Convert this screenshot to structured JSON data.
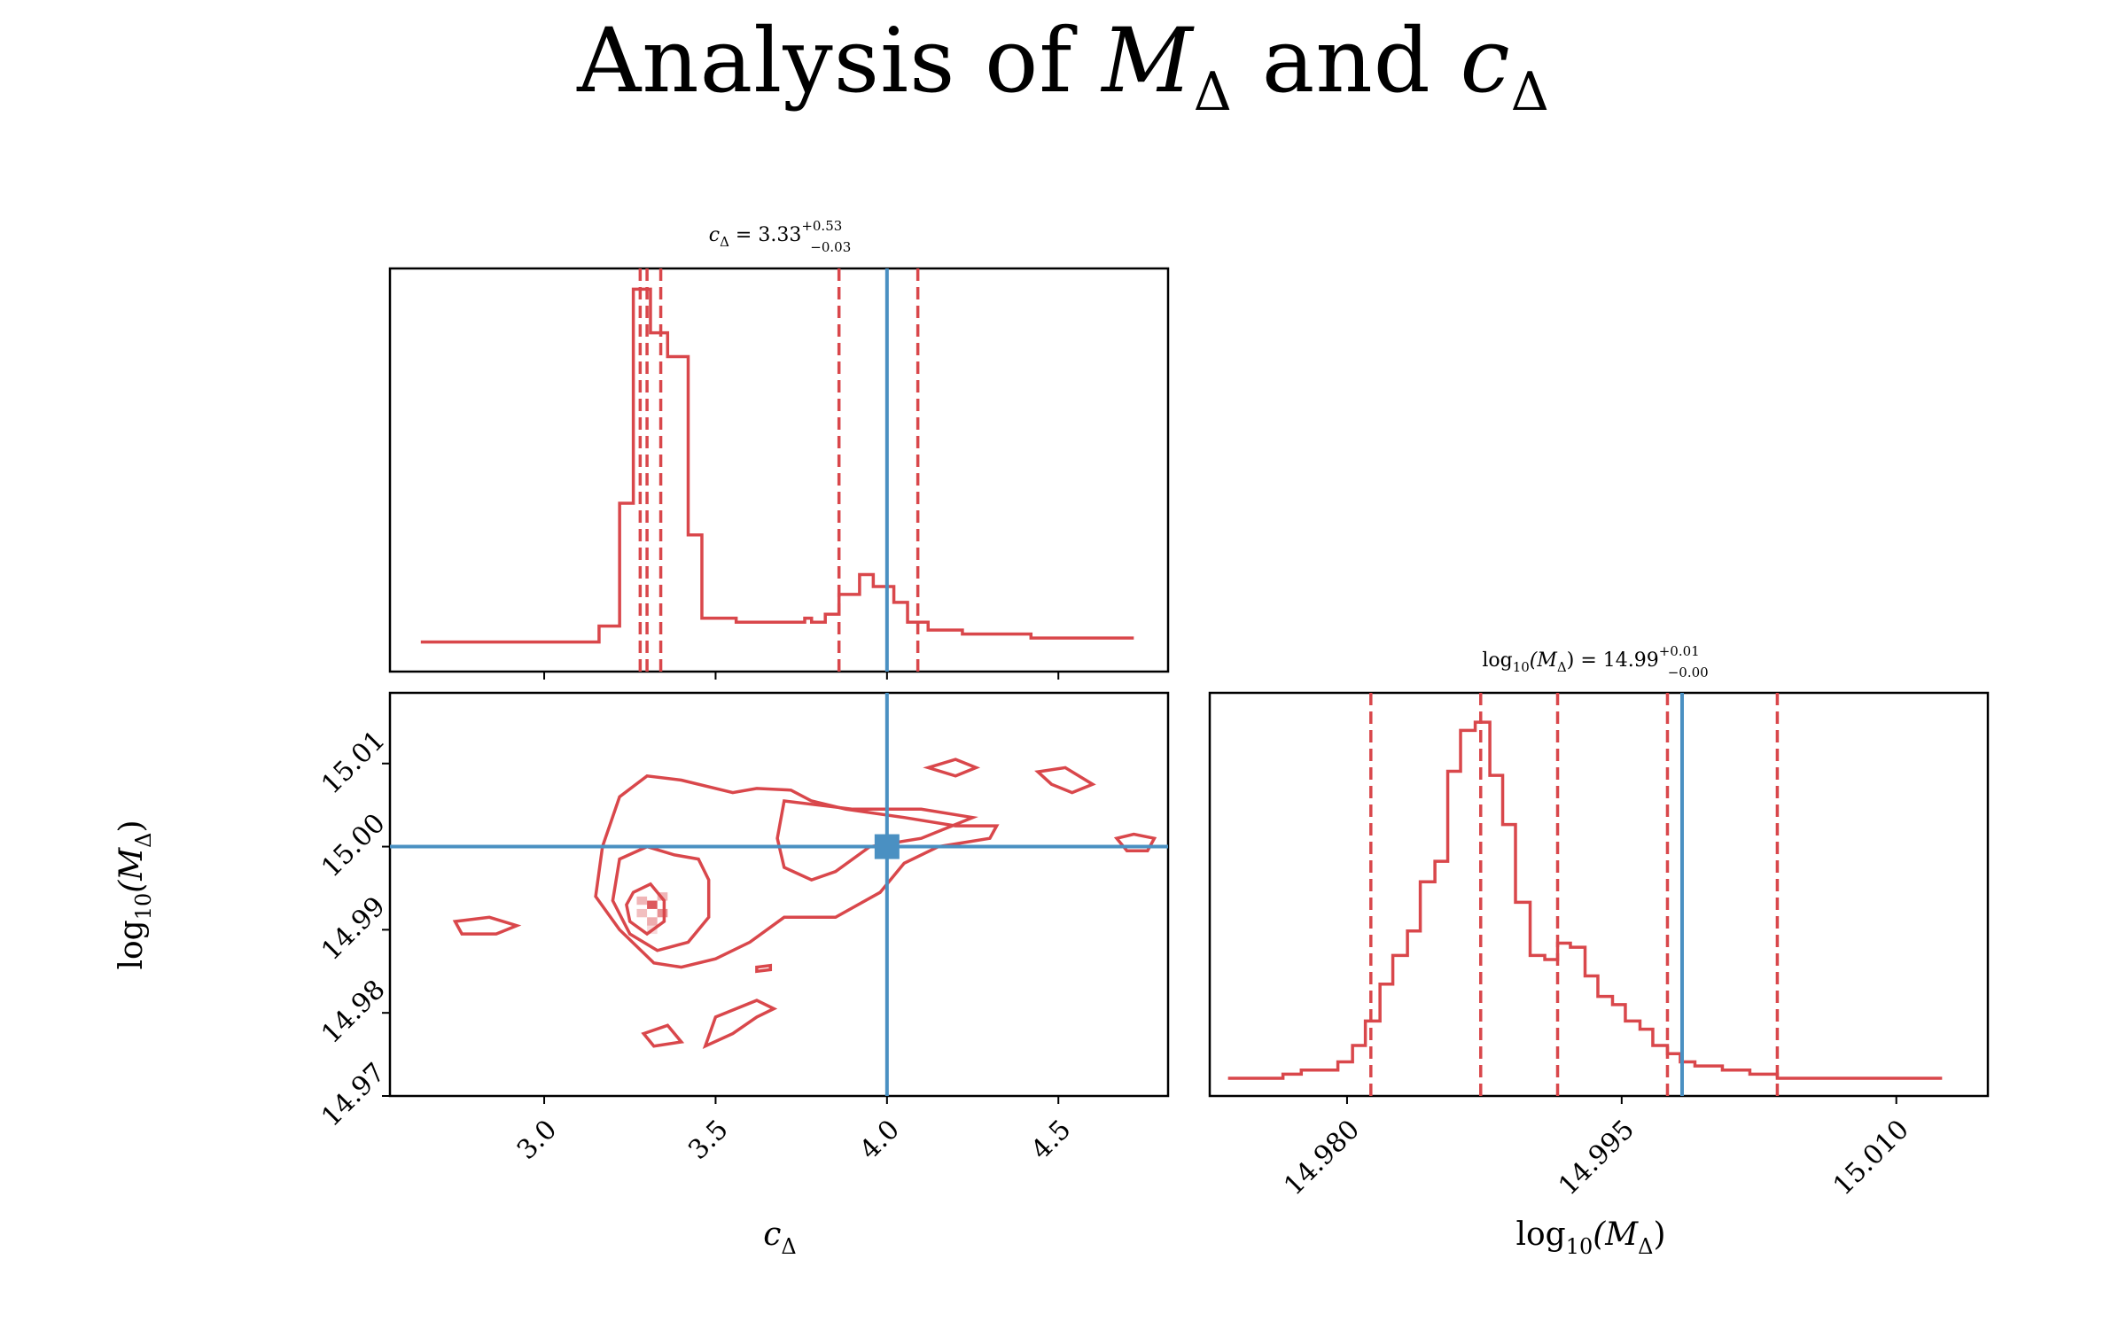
{
  "title": {
    "text": "Analysis of ",
    "sym1": "M",
    "sub1": "Δ",
    "mid": " and ",
    "sym2": "c",
    "sub2": "Δ"
  },
  "colors": {
    "posterior": "#d9474b",
    "truth": "#4a90c2",
    "axis": "#000000"
  },
  "panels": {
    "c_hist_title": {
      "lhs": "c",
      "sub": "Δ",
      "eq": " = 3.33",
      "plus": "+0.53",
      "minus": "−0.03"
    },
    "m_hist_title": {
      "lhs": "log",
      "lhs_sub": "10",
      "inner": "(M",
      "inner_sub": "Δ",
      "close": ")",
      "eq": " = 14.99",
      "plus": "+0.01",
      "minus": "−0.00"
    },
    "xlabel_c": {
      "sym": "c",
      "sub": "Δ"
    },
    "xlabel_m": {
      "text": "log",
      "sub": "10",
      "inner": "(M",
      "inner_sub": "Δ",
      "close": ")"
    },
    "ylabel_m": {
      "text": "log",
      "sub": "10",
      "inner": "(M",
      "inner_sub": "Δ",
      "close": ")"
    }
  },
  "chart_data": [
    {
      "type": "histogram",
      "panel": "c_delta_marginal",
      "x_ticks": [
        "3.0",
        "3.5",
        "4.0",
        "4.5"
      ],
      "x_tick_values": [
        3.0,
        3.5,
        4.0,
        4.5
      ],
      "xlim": [
        2.55,
        4.82
      ],
      "bin_edges": [
        2.64,
        2.7,
        2.76,
        2.82,
        2.88,
        2.94,
        3.0,
        3.06,
        3.12,
        3.16,
        3.22,
        3.26,
        3.31,
        3.36,
        3.42,
        3.46,
        3.56,
        3.62,
        3.66,
        3.72,
        3.76,
        3.78,
        3.82,
        3.86,
        3.92,
        3.96,
        4.02,
        4.06,
        4.12,
        4.22,
        4.42,
        4.62,
        4.72
      ],
      "counts": [
        0.03,
        0.03,
        0.03,
        0.03,
        0.03,
        0.03,
        0.03,
        0.03,
        0.03,
        0.07,
        0.38,
        0.92,
        0.81,
        0.75,
        0.3,
        0.09,
        0.08,
        0.08,
        0.08,
        0.08,
        0.09,
        0.08,
        0.1,
        0.15,
        0.2,
        0.17,
        0.13,
        0.08,
        0.06,
        0.05,
        0.04,
        0.04
      ],
      "quantile_lines": [
        3.28,
        3.3,
        3.34,
        3.86,
        4.09
      ],
      "truth": 4.0
    },
    {
      "type": "contour",
      "panel": "joint",
      "x_ticks": [
        "3.0",
        "3.5",
        "4.0",
        "4.5"
      ],
      "x_tick_values": [
        3.0,
        3.5,
        4.0,
        4.5
      ],
      "y_ticks": [
        "14.97",
        "14.98",
        "14.99",
        "15.00",
        "15.01"
      ],
      "y_tick_values": [
        14.97,
        14.98,
        14.99,
        15.0,
        15.01
      ],
      "xlim": [
        2.55,
        4.82
      ],
      "ylim": [
        14.97,
        15.0185
      ],
      "truth": {
        "x": 4.0,
        "y": 15.0
      },
      "peak": {
        "x": 3.3,
        "y": 14.9925
      }
    },
    {
      "type": "histogram",
      "panel": "log10_M_marginal",
      "x_ticks": [
        "14.980",
        "14.995",
        "15.010"
      ],
      "x_tick_values": [
        14.98,
        14.995,
        15.01
      ],
      "xlim": [
        14.9725,
        15.015
      ],
      "bin_edges": [
        14.9735,
        14.9765,
        14.9775,
        14.9785,
        14.9795,
        14.9803,
        14.981,
        14.9818,
        14.9825,
        14.9833,
        14.984,
        14.9848,
        14.9855,
        14.9862,
        14.987,
        14.9878,
        14.9885,
        14.9892,
        14.99,
        14.9908,
        14.9915,
        14.9922,
        14.993,
        14.9937,
        14.9945,
        14.9952,
        14.996,
        14.9967,
        14.9975,
        14.9982,
        14.999,
        14.9997,
        15.0005,
        15.0012,
        15.002,
        15.0035,
        15.006,
        15.0125
      ],
      "counts": [
        0.0,
        0.01,
        0.02,
        0.02,
        0.04,
        0.08,
        0.14,
        0.23,
        0.3,
        0.36,
        0.48,
        0.53,
        0.75,
        0.85,
        0.87,
        0.74,
        0.62,
        0.43,
        0.3,
        0.29,
        0.33,
        0.32,
        0.25,
        0.2,
        0.18,
        0.14,
        0.12,
        0.08,
        0.06,
        0.04,
        0.03,
        0.03,
        0.02,
        0.02,
        0.01,
        0.0,
        0.0
      ],
      "quantile_lines": [
        14.9813,
        14.9873,
        14.9915,
        14.9975,
        15.0035
      ],
      "truth": 14.9983
    }
  ]
}
